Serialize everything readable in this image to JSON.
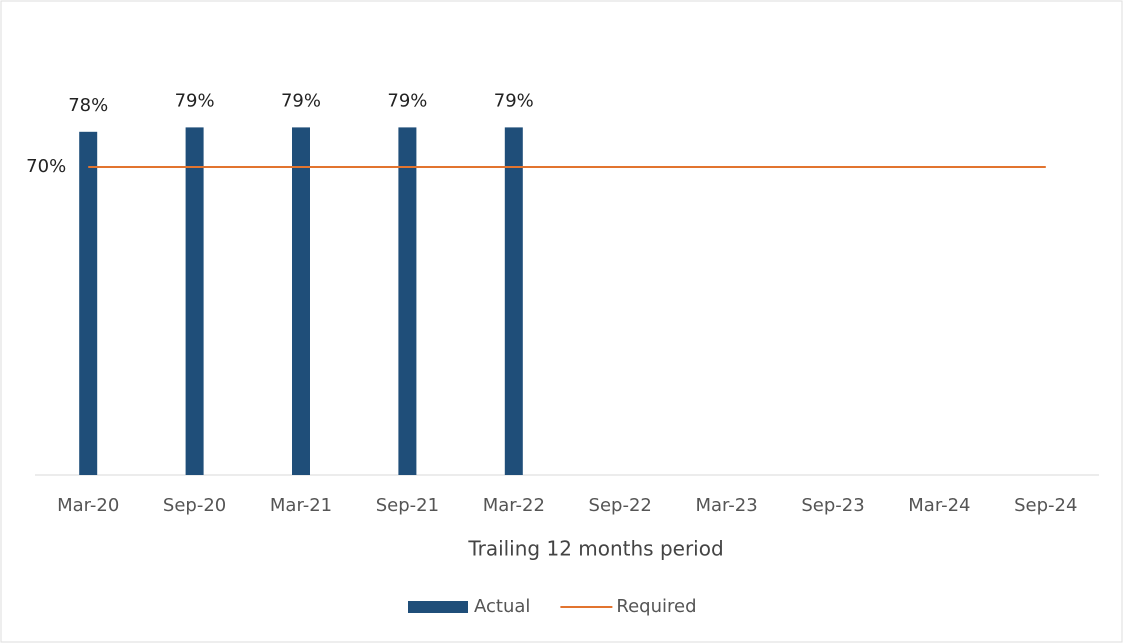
{
  "chart_data": {
    "type": "bar",
    "categories": [
      "Mar-20",
      "Sep-20",
      "Mar-21",
      "Sep-21",
      "Mar-22",
      "Sep-22",
      "Mar-23",
      "Sep-23",
      "Mar-24",
      "Sep-24"
    ],
    "series": [
      {
        "name": "Actual",
        "type": "bar",
        "color": "#1f4e79",
        "values": [
          78,
          79,
          79,
          79,
          79,
          null,
          null,
          null,
          null,
          null
        ],
        "value_labels": [
          "78%",
          "79%",
          "79%",
          "79%",
          "79%",
          null,
          null,
          null,
          null,
          null
        ]
      },
      {
        "name": "Required",
        "type": "line",
        "color": "#e2742f",
        "values": [
          70,
          70,
          70,
          70,
          70,
          70,
          70,
          70,
          70,
          70
        ],
        "value_labels": [
          "70%",
          null,
          null,
          null,
          null,
          null,
          null,
          null,
          null,
          null
        ]
      }
    ],
    "xlabel": "Trailing 12 months period",
    "ylim": [
      0,
      100
    ],
    "legend": "bottom"
  }
}
